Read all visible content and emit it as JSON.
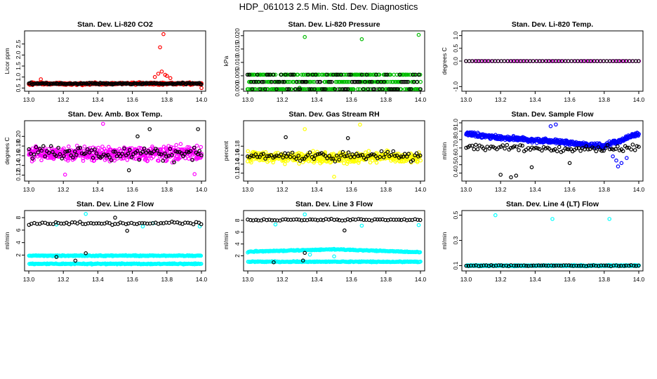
{
  "title": "HDP_061013  2.5 Min. Std. Dev. Diagnostics",
  "chart_data": [
    {
      "type": "scatter",
      "title": "Stan. Dev. Li-820 CO2",
      "ylabel": "Licor ppm",
      "xlabel": "",
      "xlim": [
        13.0,
        14.0
      ],
      "ylim": [
        0.45,
        3.0
      ],
      "xticks": [
        "13.0",
        "13.2",
        "13.4",
        "13.6",
        "13.8",
        "14.0"
      ],
      "yticks": [
        "0.5",
        "1.0",
        "1.5",
        "2.0",
        "2.5"
      ],
      "series": [
        {
          "name": "primary",
          "color": "#ff0000",
          "baseline": 0.7,
          "spread": 0.08,
          "n": 340,
          "extra": [
            [
              13.78,
              2.95
            ],
            [
              13.76,
              2.35
            ],
            [
              13.77,
              1.25
            ],
            [
              13.75,
              1.15
            ],
            [
              13.8,
              1.05
            ],
            [
              13.73,
              1.0
            ],
            [
              13.82,
              0.95
            ],
            [
              13.79,
              1.1
            ],
            [
              13.07,
              0.9
            ],
            [
              14.0,
              0.5
            ]
          ]
        },
        {
          "name": "secondary",
          "color": "#000000",
          "baseline": 0.7,
          "spread": 0.06,
          "n": 160,
          "extra": []
        }
      ]
    },
    {
      "type": "scatter",
      "title": "Stan. Dev. Li-820 Pressure",
      "ylabel": "kPa",
      "xlabel": "",
      "xlim": [
        13.0,
        14.0
      ],
      "ylim": [
        0.0,
        0.021
      ],
      "xticks": [
        "13.0",
        "13.2",
        "13.4",
        "13.6",
        "13.8",
        "14.0"
      ],
      "yticks": [
        "0.000",
        "0.005",
        "0.010",
        "0.015",
        "0.020"
      ],
      "series": [
        {
          "name": "primary",
          "color": "#00bb00",
          "levels": [
            0.0,
            0.0027,
            0.0054
          ],
          "n": 420,
          "extra": [
            [
              13.33,
              0.0195
            ],
            [
              13.66,
              0.0187
            ],
            [
              13.99,
              0.0203
            ],
            [
              13.3,
              0.0005
            ],
            [
              13.5,
              0.0001
            ]
          ]
        },
        {
          "name": "secondary",
          "color": "#000000",
          "levels": [
            0.0,
            0.0027,
            0.0054
          ],
          "n": 110,
          "extra": []
        }
      ]
    },
    {
      "type": "scatter",
      "title": "Stan. Dev. Li-820 Temp.",
      "ylabel": "degrees C",
      "xlabel": "",
      "xlim": [
        13.0,
        14.0
      ],
      "ylim": [
        -1.1,
        1.1
      ],
      "xticks": [
        "13.0",
        "13.2",
        "13.4",
        "13.6",
        "13.8",
        "14.0"
      ],
      "yticks": [
        "-1.0",
        "0.0",
        "0.5",
        "1.0"
      ],
      "series": [
        {
          "name": "primary",
          "color": "#ff00ff",
          "constant": 0.0,
          "n": 60,
          "extra": []
        },
        {
          "name": "secondary",
          "color": "#000000",
          "constant": 0.0,
          "n": 55,
          "extra": []
        }
      ]
    },
    {
      "type": "scatter",
      "title": "Stan. Dev. Amb. Box Temp.",
      "ylabel": "degrees C",
      "xlabel": "",
      "xlim": [
        13.0,
        14.0
      ],
      "ylim": [
        0.112,
        0.228
      ],
      "xticks": [
        "13.0",
        "13.2",
        "13.4",
        "13.6",
        "13.8",
        "14.0"
      ],
      "yticks": [
        "0.12",
        "0.14",
        "0.16",
        "0.18",
        "0.20"
      ],
      "series": [
        {
          "name": "primary",
          "color": "#ff00ff",
          "baseline": 0.165,
          "spread": 0.021,
          "n": 480,
          "extra": [
            [
              13.43,
              0.226
            ],
            [
              13.21,
              0.121
            ],
            [
              13.96,
              0.122
            ]
          ]
        },
        {
          "name": "secondary",
          "color": "#000000",
          "baseline": 0.165,
          "spread": 0.021,
          "n": 95,
          "extra": [
            [
              13.98,
              0.215
            ],
            [
              13.7,
              0.215
            ],
            [
              13.63,
              0.2
            ],
            [
              13.58,
              0.13
            ]
          ]
        }
      ]
    },
    {
      "type": "scatter",
      "title": "Stan. Dev. Gas Stream RH",
      "ylabel": "percent",
      "xlabel": "",
      "xlim": [
        13.0,
        14.0
      ],
      "ylim": [
        0.107,
        0.232
      ],
      "xticks": [
        "13.0",
        "13.2",
        "13.4",
        "13.6",
        "13.8",
        "14.0"
      ],
      "yticks": [
        "0.12",
        "0.14",
        "0.16",
        "0.18"
      ],
      "series": [
        {
          "name": "primary",
          "color": "#ffff00",
          "baseline": 0.155,
          "spread": 0.017,
          "n": 480,
          "extra": [
            [
              13.65,
              0.228
            ],
            [
              13.33,
              0.218
            ],
            [
              13.5,
              0.112
            ]
          ]
        },
        {
          "name": "secondary",
          "color": "#000000",
          "baseline": 0.157,
          "spread": 0.015,
          "n": 90,
          "extra": [
            [
              13.22,
              0.2
            ],
            [
              13.58,
              0.198
            ]
          ]
        }
      ]
    },
    {
      "type": "scatter",
      "title": "Stan. Dev. Sample Flow",
      "ylabel": "ml/min",
      "xlabel": "",
      "xlim": [
        13.0,
        14.0
      ],
      "ylim": [
        0.33,
        1.0
      ],
      "xticks": [
        "13.0",
        "13.2",
        "13.4",
        "13.6",
        "13.8",
        "14.0"
      ],
      "yticks": [
        "0.4",
        "0.5",
        "0.6",
        "0.7",
        "0.8",
        "0.9",
        "1.0"
      ],
      "series": [
        {
          "name": "primary",
          "color": "#0000ff",
          "trend": [
            [
              13.0,
              0.87
            ],
            [
              13.2,
              0.82
            ],
            [
              13.5,
              0.78
            ],
            [
              13.8,
              0.72
            ],
            [
              14.0,
              0.87
            ]
          ],
          "spread": 0.04,
          "n": 480,
          "extra": [
            [
              13.52,
              0.98
            ],
            [
              13.49,
              0.96
            ],
            [
              13.87,
              0.55
            ],
            [
              13.9,
              0.52
            ],
            [
              13.85,
              0.6
            ],
            [
              13.88,
              0.48
            ],
            [
              13.93,
              0.58
            ]
          ]
        },
        {
          "name": "secondary",
          "color": "#000000",
          "trend": [
            [
              13.0,
              0.72
            ],
            [
              13.5,
              0.68
            ],
            [
              14.0,
              0.7
            ]
          ],
          "spread": 0.05,
          "n": 90,
          "extra": [
            [
              13.2,
              0.38
            ],
            [
              13.26,
              0.35
            ],
            [
              13.29,
              0.37
            ],
            [
              13.38,
              0.47
            ],
            [
              13.6,
              0.52
            ]
          ]
        }
      ]
    },
    {
      "type": "scatter",
      "title": "Stan. Dev. Line 2 Flow",
      "ylabel": "ml/min",
      "xlabel": "",
      "xlim": [
        13.0,
        14.0
      ],
      "ylim": [
        -0.2,
        8.8
      ],
      "xticks": [
        "13.0",
        "13.2",
        "13.4",
        "13.6",
        "13.8",
        "14.0"
      ],
      "yticks": [
        "2",
        "4",
        "6",
        "8"
      ],
      "series": [
        {
          "name": "primary",
          "color": "#00ffff",
          "levels": [
            1.9,
            0.6
          ],
          "spread": 0.12,
          "n": 520,
          "extra": [
            [
              13.33,
              8.6
            ],
            [
              13.66,
              6.6
            ],
            [
              13.16,
              6.9
            ],
            [
              13.99,
              6.6
            ],
            [
              13.72,
              7.1
            ]
          ]
        },
        {
          "name": "secondary",
          "color": "#000000",
          "baseline": 7.1,
          "spread": 0.35,
          "n": 65,
          "extra": [
            [
              13.33,
              2.3
            ],
            [
              13.27,
              1.1
            ],
            [
              13.16,
              1.7
            ],
            [
              13.57,
              5.9
            ],
            [
              13.5,
              8.0
            ]
          ]
        }
      ]
    },
    {
      "type": "scatter",
      "title": "Stan. Dev. Line 3 Flow",
      "ylabel": "ml/min",
      "xlabel": "",
      "xlim": [
        13.0,
        14.0
      ],
      "ylim": [
        -0.2,
        9.3
      ],
      "xticks": [
        "13.0",
        "13.2",
        "13.4",
        "13.6",
        "13.8",
        "14.0"
      ],
      "yticks": [
        "2",
        "4",
        "6",
        "8"
      ],
      "series": [
        {
          "name": "primary",
          "color": "#00ffff",
          "trend": [
            [
              13.0,
              2.7
            ],
            [
              13.5,
              3.1
            ],
            [
              14.0,
              2.6
            ]
          ],
          "levels2": 1.0,
          "spread": 0.12,
          "n": 520,
          "extra": [
            [
              13.33,
              9.0
            ],
            [
              13.16,
              7.3
            ],
            [
              13.66,
              7.1
            ],
            [
              13.99,
              7.2
            ],
            [
              13.5,
              1.9
            ],
            [
              13.36,
              2.2
            ]
          ]
        },
        {
          "name": "secondary",
          "color": "#000000",
          "baseline": 8.1,
          "spread": 0.2,
          "n": 65,
          "extra": [
            [
              13.56,
              6.3
            ],
            [
              13.33,
              2.5
            ],
            [
              13.15,
              0.9
            ],
            [
              13.32,
              1.2
            ]
          ]
        }
      ]
    },
    {
      "type": "scatter",
      "title": "Stan. Dev. Line 4 (LT) Flow",
      "ylabel": "ml/min",
      "xlabel": "",
      "xlim": [
        13.0,
        14.0
      ],
      "ylim": [
        0.075,
        0.52
      ],
      "xticks": [
        "13.0",
        "13.2",
        "13.4",
        "13.6",
        "13.8",
        "14.0"
      ],
      "yticks": [
        "0.1",
        "0.3",
        "0.5"
      ],
      "series": [
        {
          "name": "primary",
          "color": "#00ffff",
          "baseline": 0.1,
          "spread": 0.006,
          "n": 520,
          "extra": [
            [
              13.17,
              0.5
            ],
            [
              13.5,
              0.47
            ],
            [
              13.83,
              0.47
            ]
          ]
        },
        {
          "name": "secondary",
          "color": "#000000",
          "baseline": 0.1,
          "spread": 0.005,
          "n": 70,
          "extra": []
        }
      ]
    }
  ]
}
